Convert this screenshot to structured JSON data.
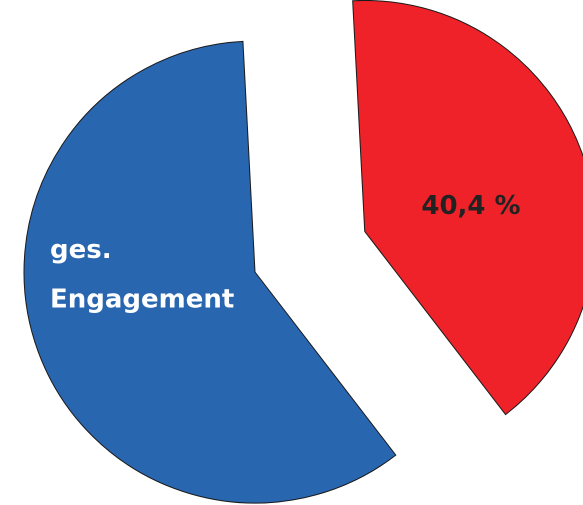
{
  "chart_data": {
    "type": "pie",
    "slices": [
      {
        "value": 40.4,
        "label": "40,4 %",
        "color": "#EE2228",
        "label_color": "#222222",
        "exploded": true
      },
      {
        "value": 59.6,
        "label_lines": [
          "ges.",
          "Engagement"
        ],
        "color": "#2966B0",
        "label_color": "#ffffff",
        "exploded": false
      }
    ],
    "title": "",
    "legend": "none"
  }
}
